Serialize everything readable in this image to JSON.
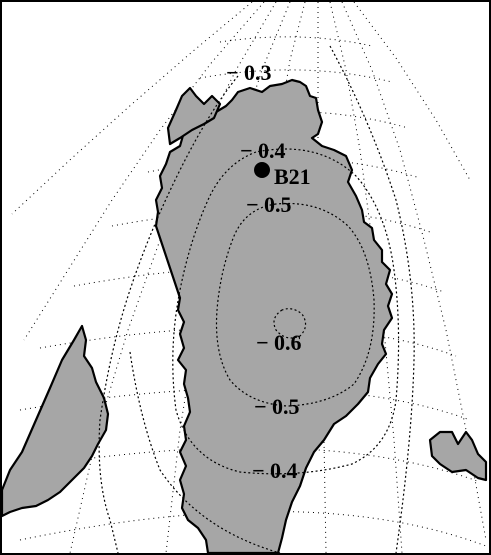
{
  "map": {
    "land_color": "#a6a6a6",
    "contour_labels": {
      "c03": "− 0.3",
      "c04_top": "− 0.4",
      "c05_top": "− 0.5",
      "c06": "− 0.6",
      "c05_bottom": "− 0.5",
      "c04_bottom": "− 0.4"
    },
    "station": {
      "label": "B21",
      "symbol": "filled-circle"
    }
  }
}
